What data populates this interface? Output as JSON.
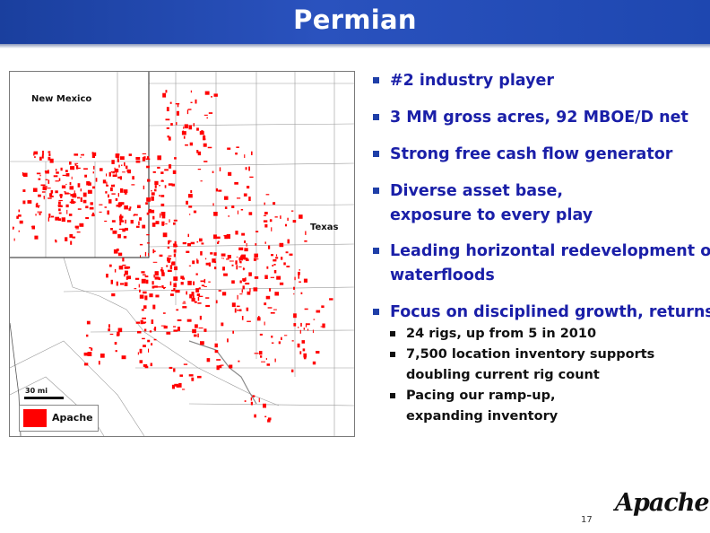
{
  "header": {
    "title": "Permian"
  },
  "map": {
    "labels": {
      "new_mexico": "New Mexico",
      "texas": "Texas"
    },
    "scale_label": "30 mi",
    "legend_label": "Apache",
    "acreage_color": "#ff0000"
  },
  "bullets": [
    {
      "text": "#2 industry player"
    },
    {
      "text": "3 MM gross acres, 92 MBOE/D net"
    },
    {
      "text": "Strong free cash flow generator"
    },
    {
      "lines": [
        "Diverse asset base,",
        "exposure to every play"
      ]
    },
    {
      "lines": [
        "Leading horizontal redevelopment of",
        "waterfloods"
      ]
    },
    {
      "text": "Focus on disciplined growth, returns",
      "sub": [
        {
          "lines": [
            "24 rigs, up from 5 in 2010"
          ]
        },
        {
          "lines": [
            "7,500 location inventory supports",
            "doubling current rig count"
          ]
        },
        {
          "lines": [
            "Pacing our ramp-up,",
            "expanding inventory"
          ]
        }
      ]
    }
  ],
  "footer": {
    "page_number": "17",
    "logo_text": "Apache"
  }
}
